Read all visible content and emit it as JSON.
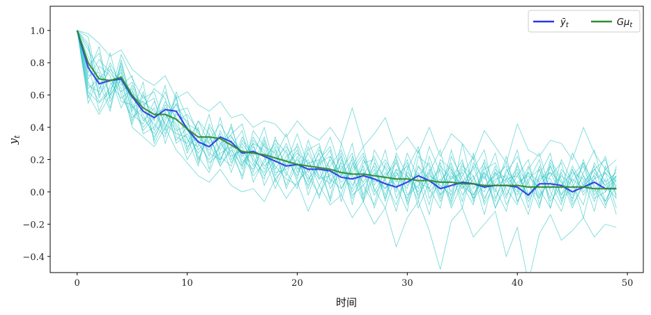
{
  "chart_data": {
    "type": "line",
    "title": "",
    "xlabel": "时间",
    "ylabel": "y_t",
    "xlim": [
      -2.45,
      51.45
    ],
    "ylim": [
      -0.5,
      1.15
    ],
    "xticks": [
      0,
      10,
      20,
      30,
      40,
      50
    ],
    "yticks": [
      -0.4,
      -0.2,
      0.0,
      0.2,
      0.4,
      0.6,
      0.8,
      1.0
    ],
    "grid": false,
    "legend": {
      "placement": "top-right",
      "entries": [
        {
          "main": "ȳ",
          "sub": "t",
          "color": "#2b36e8"
        },
        {
          "main": "Gμ",
          "sub": "t",
          "color": "#2e8b2e"
        }
      ]
    },
    "colors": {
      "sample_paths": "#2ec4c4",
      "mean": "#2b36e8",
      "theoretical": "#2e8b2e"
    },
    "series": [
      {
        "name": "ȳ_t",
        "x": [
          0,
          1,
          2,
          3,
          4,
          5,
          6,
          7,
          8,
          9,
          10,
          11,
          12,
          13,
          14,
          15,
          16,
          17,
          18,
          19,
          20,
          21,
          22,
          23,
          24,
          25,
          26,
          27,
          28,
          29,
          30,
          31,
          32,
          33,
          34,
          35,
          36,
          37,
          38,
          39,
          40,
          41,
          42,
          43,
          44,
          45,
          46,
          47,
          48,
          49
        ],
        "values": [
          1.0,
          0.77,
          0.67,
          0.69,
          0.7,
          0.59,
          0.5,
          0.46,
          0.51,
          0.5,
          0.39,
          0.31,
          0.28,
          0.34,
          0.31,
          0.24,
          0.25,
          0.22,
          0.19,
          0.16,
          0.17,
          0.14,
          0.14,
          0.13,
          0.09,
          0.08,
          0.1,
          0.08,
          0.05,
          0.03,
          0.06,
          0.1,
          0.07,
          0.02,
          0.04,
          0.06,
          0.05,
          0.03,
          0.04,
          0.04,
          0.03,
          -0.02,
          0.05,
          0.05,
          0.04,
          0.0,
          0.03,
          0.06,
          0.02,
          0.02
        ]
      },
      {
        "name": "Gμ_t",
        "x": [
          0,
          1,
          2,
          3,
          4,
          5,
          6,
          7,
          8,
          9,
          10,
          11,
          12,
          13,
          14,
          15,
          16,
          17,
          18,
          19,
          20,
          21,
          22,
          23,
          24,
          25,
          26,
          27,
          28,
          29,
          30,
          31,
          32,
          33,
          34,
          35,
          36,
          37,
          38,
          39,
          40,
          41,
          42,
          43,
          44,
          45,
          46,
          47,
          48,
          49
        ],
        "values": [
          1.0,
          0.8,
          0.7,
          0.69,
          0.71,
          0.6,
          0.52,
          0.48,
          0.48,
          0.45,
          0.39,
          0.34,
          0.34,
          0.33,
          0.29,
          0.25,
          0.24,
          0.23,
          0.21,
          0.19,
          0.17,
          0.16,
          0.15,
          0.14,
          0.12,
          0.11,
          0.11,
          0.1,
          0.09,
          0.08,
          0.08,
          0.07,
          0.07,
          0.06,
          0.06,
          0.05,
          0.05,
          0.04,
          0.04,
          0.04,
          0.04,
          0.03,
          0.03,
          0.03,
          0.03,
          0.03,
          0.03,
          0.02,
          0.02,
          0.02
        ]
      }
    ],
    "sample_paths": [
      [
        1.0,
        0.62,
        0.55,
        0.62,
        0.78,
        0.53,
        0.46,
        0.36,
        0.48,
        0.38,
        0.41,
        0.22,
        0.12,
        0.3,
        0.35,
        0.22,
        0.3,
        0.04,
        0.18,
        0.3,
        0.12,
        0.24,
        0.1,
        0.05,
        0.18,
        -0.02,
        0.04,
        0.14,
        -0.04,
        0.14,
        -0.06,
        0.16,
        0.02,
        -0.1,
        0.22,
        0.08,
        -0.04,
        0.04,
        0.1,
        0.16,
        -0.06,
        0.06,
        0.2,
        -0.1,
        0.12,
        -0.08,
        0.04,
        0.16,
        -0.06,
        0.08
      ],
      [
        1.0,
        0.88,
        0.76,
        0.6,
        0.85,
        0.7,
        0.58,
        0.62,
        0.4,
        0.55,
        0.42,
        0.38,
        0.22,
        0.46,
        0.2,
        0.28,
        0.12,
        0.32,
        0.1,
        0.22,
        0.28,
        0.06,
        0.26,
        0.14,
        -0.02,
        0.22,
        0.04,
        -0.08,
        0.18,
        0.06,
        0.2,
        -0.04,
        0.12,
        0.26,
        -0.04,
        0.1,
        0.22,
        -0.08,
        0.06,
        0.18,
        0.02,
        -0.14,
        0.1,
        0.24,
        -0.06,
        0.14,
        -0.02,
        0.08,
        0.22,
        -0.04
      ],
      [
        1.0,
        0.7,
        0.82,
        0.74,
        0.64,
        0.42,
        0.6,
        0.44,
        0.66,
        0.34,
        0.3,
        0.44,
        0.36,
        0.18,
        0.42,
        0.16,
        0.34,
        0.22,
        0.02,
        0.18,
        0.36,
        0.16,
        -0.04,
        0.22,
        0.1,
        0.3,
        -0.02,
        0.18,
        0.08,
        -0.12,
        0.14,
        0.28,
        0.0,
        0.08,
        -0.06,
        0.3,
        0.02,
        0.12,
        -0.1,
        0.08,
        0.26,
        -0.02,
        0.14,
        -0.04,
        0.2,
        0.06,
        -0.16,
        0.12,
        0.04,
        0.1
      ],
      [
        1.0,
        0.92,
        0.58,
        0.8,
        0.66,
        0.72,
        0.44,
        0.52,
        0.38,
        0.62,
        0.46,
        0.18,
        0.4,
        0.26,
        0.36,
        0.42,
        0.18,
        0.08,
        0.34,
        0.12,
        0.02,
        0.26,
        0.3,
        0.06,
        0.24,
        -0.08,
        0.18,
        0.2,
        -0.06,
        0.24,
        0.1,
        -0.06,
        0.22,
        0.02,
        0.14,
        -0.1,
        0.18,
        0.08,
        0.24,
        -0.02,
        0.1,
        0.2,
        -0.08,
        0.16,
        0.02,
        0.24,
        0.1,
        -0.06,
        0.14,
        0.06
      ],
      [
        1.0,
        0.55,
        0.72,
        0.68,
        0.58,
        0.64,
        0.36,
        0.4,
        0.56,
        0.46,
        0.24,
        0.4,
        0.14,
        0.38,
        0.24,
        0.1,
        0.38,
        0.28,
        0.24,
        0.04,
        0.22,
        0.02,
        0.2,
        0.28,
        0.02,
        0.16,
        0.28,
        0.0,
        0.12,
        0.04,
        -0.12,
        0.22,
        0.16,
        -0.02,
        0.26,
        0.04,
        -0.08,
        0.2,
        0.02,
        -0.12,
        0.16,
        0.04,
        -0.04,
        0.1,
        0.18,
        -0.06,
        0.2,
        0.02,
        -0.1,
        0.16
      ],
      [
        1.0,
        0.8,
        0.5,
        0.66,
        0.74,
        0.5,
        0.68,
        0.3,
        0.44,
        0.58,
        0.32,
        0.28,
        0.48,
        0.22,
        0.16,
        0.34,
        0.22,
        0.4,
        0.14,
        0.26,
        0.08,
        0.32,
        0.14,
        -0.04,
        0.3,
        0.1,
        -0.06,
        0.26,
        0.14,
        0.0,
        0.24,
        0.08,
        -0.14,
        0.16,
        0.08,
        0.2,
        -0.06,
        0.14,
        0.18,
        0.02,
        -0.08,
        0.14,
        0.24,
        0.0,
        -0.12,
        0.1,
        0.18,
        -0.02,
        0.08,
        -0.14
      ],
      [
        1.0,
        0.74,
        0.9,
        0.56,
        0.7,
        0.62,
        0.54,
        0.58,
        0.3,
        0.5,
        0.52,
        0.36,
        0.3,
        0.16,
        0.28,
        0.38,
        0.06,
        0.2,
        0.3,
        0.16,
        0.26,
        -0.02,
        0.18,
        0.34,
        0.12,
        0.02,
        0.2,
        0.06,
        0.26,
        -0.04,
        0.1,
        0.02,
        0.28,
        0.12,
        -0.1,
        0.06,
        0.14,
        0.26,
        -0.04,
        0.12,
        0.22,
        0.06,
        -0.1,
        0.18,
        0.06,
        -0.04,
        0.12,
        0.26,
        0.0,
        0.1
      ],
      [
        1.0,
        0.66,
        0.62,
        0.86,
        0.6,
        0.46,
        0.52,
        0.64,
        0.58,
        0.3,
        0.36,
        0.24,
        0.32,
        0.42,
        0.3,
        0.14,
        0.28,
        0.16,
        0.22,
        0.36,
        0.14,
        0.2,
        0.04,
        0.16,
        0.26,
        0.08,
        0.14,
        -0.1,
        0.1,
        0.18,
        0.04,
        0.12,
        -0.08,
        0.2,
        0.14,
        0.02,
        0.1,
        -0.14,
        0.12,
        0.06,
        0.14,
        -0.06,
        0.08,
        0.12,
        -0.02,
        0.16,
        0.04,
        0.1,
        -0.08,
        0.04
      ],
      [
        1.0,
        0.84,
        0.68,
        0.5,
        0.8,
        0.56,
        0.4,
        0.48,
        0.52,
        0.42,
        0.28,
        0.34,
        0.26,
        0.36,
        0.18,
        0.3,
        0.2,
        0.12,
        0.26,
        0.1,
        0.3,
        0.12,
        0.24,
        0.02,
        0.14,
        0.24,
        -0.04,
        0.12,
        0.02,
        0.1,
        0.16,
        -0.1,
        0.06,
        0.14,
        0.0,
        0.18,
        -0.02,
        0.1,
        -0.06,
        0.14,
        0.04,
        0.12,
        -0.04,
        0.2,
        0.08,
        -0.1,
        0.06,
        0.14,
        0.2,
        -0.02
      ],
      [
        1.0,
        0.58,
        0.78,
        0.72,
        0.52,
        0.66,
        0.48,
        0.34,
        0.46,
        0.54,
        0.38,
        0.3,
        0.2,
        0.28,
        0.4,
        0.2,
        0.14,
        0.3,
        0.06,
        0.2,
        0.1,
        0.28,
        0.08,
        0.2,
        0.06,
        0.12,
        0.22,
        0.02,
        -0.1,
        0.12,
        0.02,
        0.26,
        -0.04,
        0.06,
        0.16,
        -0.06,
        0.24,
        0.02,
        0.12,
        -0.04,
        0.18,
        -0.1,
        0.16,
        0.02,
        0.1,
        0.04,
        -0.08,
        0.18,
        0.06,
        0.12
      ],
      [
        1.0,
        0.96,
        0.64,
        0.76,
        0.68,
        0.58,
        0.56,
        0.5,
        0.36,
        0.48,
        0.44,
        0.26,
        0.34,
        0.2,
        0.32,
        0.18,
        0.26,
        0.14,
        0.28,
        0.02,
        0.18,
        0.08,
        0.16,
        0.26,
        -0.06,
        0.18,
        0.06,
        0.16,
        -0.02,
        0.2,
        -0.08,
        0.1,
        0.18,
        -0.02,
        0.08,
        0.12,
        -0.04,
        0.16,
        0.0,
        0.22,
        -0.06,
        0.08,
        0.14,
        -0.06,
        0.04,
        0.12,
        0.08,
        -0.12,
        0.16,
        0.02
      ],
      [
        1.0,
        0.68,
        0.56,
        0.64,
        0.72,
        0.44,
        0.62,
        0.38,
        0.54,
        0.4,
        0.2,
        0.32,
        0.18,
        0.24,
        0.28,
        0.08,
        0.32,
        0.24,
        0.16,
        0.08,
        0.04,
        0.18,
        0.2,
        -0.06,
        0.2,
        0.04,
        0.16,
        -0.02,
        0.08,
        0.22,
        -0.02,
        0.04,
        0.12,
        -0.06,
        0.1,
        0.02,
        0.16,
        -0.04,
        0.08,
        0.1,
        0.0,
        0.16,
        -0.02,
        0.06,
        -0.08,
        0.14,
        0.0,
        0.08,
        0.12,
        -0.1
      ],
      [
        1.0,
        0.78,
        0.86,
        0.58,
        0.76,
        0.48,
        0.42,
        0.56,
        0.42,
        0.36,
        0.34,
        0.16,
        0.42,
        0.3,
        0.22,
        0.26,
        0.16,
        0.34,
        0.12,
        0.14,
        0.2,
        0.1,
        -0.02,
        0.12,
        0.16,
        -0.04,
        0.1,
        0.22,
        0.06,
        -0.08,
        0.12,
        0.06,
        0.02,
        0.18,
        -0.08,
        0.14,
        0.06,
        0.0,
        0.16,
        -0.08,
        0.06,
        0.1,
        0.02,
        -0.1,
        0.14,
        0.06,
        0.16,
        -0.04,
        0.0,
        0.14
      ],
      [
        1.0,
        0.64,
        0.7,
        0.78,
        0.56,
        0.54,
        0.38,
        0.46,
        0.62,
        0.44,
        0.48,
        0.38,
        0.24,
        0.2,
        0.34,
        0.24,
        0.1,
        0.18,
        0.32,
        0.24,
        0.06,
        0.14,
        0.28,
        0.08,
        0.02,
        0.14,
        0.24,
        0.04,
        0.16,
        0.02,
        0.18,
        -0.02,
        0.1,
        0.06,
        0.18,
        -0.02,
        0.08,
        0.18,
        -0.1,
        0.04,
        0.12,
        -0.04,
        0.1,
        0.08,
        -0.04,
        0.02,
        0.18,
        0.04,
        -0.06,
        0.1
      ],
      [
        1.0,
        0.9,
        0.6,
        0.7,
        0.62,
        0.68,
        0.5,
        0.42,
        0.34,
        0.6,
        0.26,
        0.44,
        0.3,
        0.34,
        0.12,
        0.32,
        0.22,
        0.1,
        0.2,
        0.28,
        0.16,
        0.04,
        0.18,
        0.22,
        0.1,
        0.2,
        -0.06,
        0.1,
        0.2,
        0.08,
        -0.04,
        0.16,
        0.08,
        0.04,
        -0.02,
        0.16,
        0.1,
        -0.06,
        0.14,
        0.08,
        -0.02,
        0.12,
        0.06,
        0.16,
        -0.02,
        0.08,
        0.02,
        0.14,
        0.04,
        -0.04
      ],
      [
        1.0,
        0.72,
        0.74,
        0.52,
        0.82,
        0.52,
        0.56,
        0.32,
        0.5,
        0.32,
        0.4,
        0.2,
        0.36,
        0.16,
        0.26,
        0.16,
        0.3,
        0.26,
        0.08,
        0.16,
        0.24,
        0.18,
        0.08,
        0.1,
        0.22,
        0.0,
        0.12,
        0.08,
        0.02,
        0.14,
        0.1,
        0.0,
        0.14,
        -0.04,
        0.12,
        0.04,
        -0.02,
        0.12,
        0.04,
        0.08,
        0.1,
        -0.02,
        0.04,
        0.12,
        0.06,
        -0.02,
        0.1,
        0.0,
        0.12,
        0.04
      ],
      [
        1.0,
        0.6,
        0.48,
        0.6,
        0.7,
        0.4,
        0.34,
        0.28,
        0.4,
        0.26,
        0.18,
        0.1,
        0.06,
        0.14,
        0.04,
        0.0,
        0.02,
        -0.06,
        0.08,
        -0.04,
        0.06,
        -0.12,
        0.04,
        -0.08,
        -0.02,
        -0.16,
        -0.06,
        -0.2,
        -0.1,
        -0.34,
        -0.16,
        -0.06,
        -0.24,
        -0.48,
        -0.18,
        -0.1,
        -0.28,
        -0.2,
        -0.12,
        -0.4,
        -0.22,
        -0.56,
        -0.26,
        -0.14,
        -0.3,
        -0.24,
        -0.16,
        -0.28,
        -0.2,
        -0.22
      ],
      [
        1.0,
        0.98,
        0.92,
        0.84,
        0.88,
        0.76,
        0.7,
        0.66,
        0.72,
        0.58,
        0.62,
        0.54,
        0.5,
        0.56,
        0.46,
        0.48,
        0.4,
        0.44,
        0.42,
        0.34,
        0.44,
        0.36,
        0.32,
        0.4,
        0.3,
        0.52,
        0.28,
        0.36,
        0.46,
        0.26,
        0.34,
        0.24,
        0.4,
        0.22,
        0.36,
        0.3,
        0.2,
        0.38,
        0.28,
        0.18,
        0.42,
        0.26,
        0.22,
        0.32,
        0.3,
        0.2,
        0.4,
        0.24,
        0.14,
        0.2
      ]
    ]
  }
}
